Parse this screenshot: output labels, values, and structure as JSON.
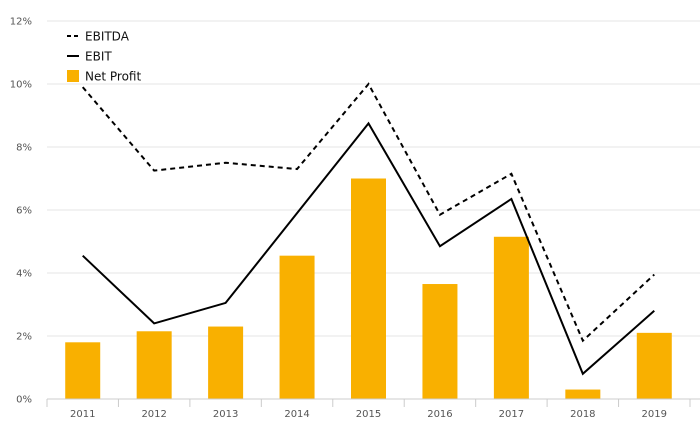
{
  "chart_data": {
    "type": "bar",
    "title": "",
    "xlabel": "",
    "ylabel": "",
    "categories": [
      "2011",
      "2012",
      "2013",
      "2014",
      "2015",
      "2016",
      "2017",
      "2018",
      "2019"
    ],
    "ylim": [
      0,
      12
    ],
    "yticks": [
      0,
      2,
      4,
      6,
      8,
      10,
      12
    ],
    "ytick_labels": [
      "0%",
      "2%",
      "4%",
      "6%",
      "8%",
      "10%",
      "12%"
    ],
    "grid": true,
    "legend_position": "top-left",
    "series": [
      {
        "name": "EBITDA",
        "kind": "line",
        "style": "dashed",
        "color": "#000000",
        "values": [
          9.9,
          7.25,
          7.5,
          7.3,
          10.0,
          5.85,
          7.15,
          1.85,
          3.95
        ]
      },
      {
        "name": "EBIT",
        "kind": "line",
        "style": "solid",
        "color": "#000000",
        "values": [
          4.55,
          2.4,
          3.05,
          5.9,
          8.75,
          4.85,
          6.35,
          0.8,
          2.8
        ]
      },
      {
        "name": "Net Profit",
        "kind": "bar",
        "color": "#F9B000",
        "values": [
          1.8,
          2.15,
          2.3,
          4.55,
          7.0,
          3.65,
          5.15,
          0.3,
          2.1
        ]
      }
    ]
  }
}
